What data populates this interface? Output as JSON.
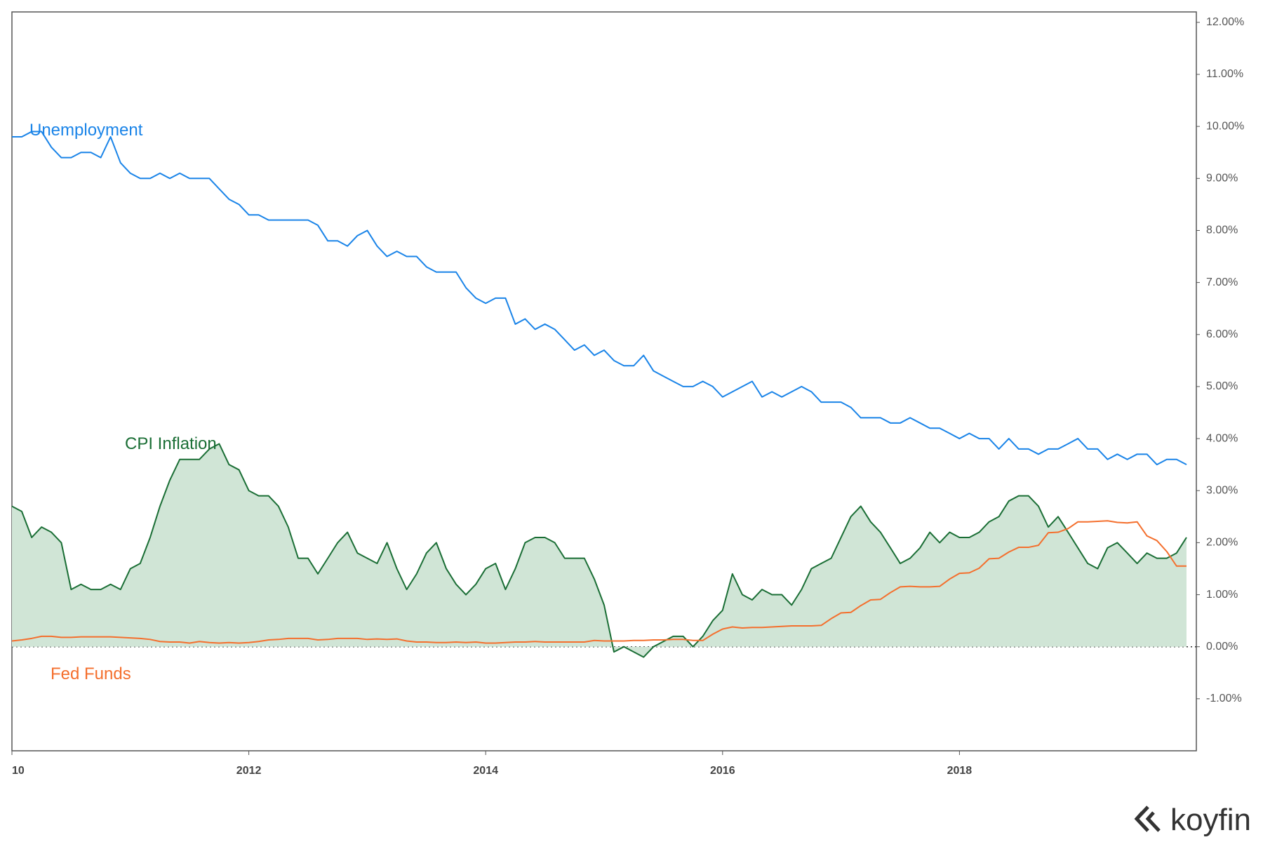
{
  "chart_data": {
    "type": "line",
    "xlim": [
      2010,
      2020
    ],
    "xticks": [
      {
        "value": 2010,
        "label": "10"
      },
      2012,
      2014,
      2016,
      2018
    ],
    "ylim": [
      -2,
      12.2
    ],
    "yticks": [
      {
        "value": -1,
        "label": "-1.00%"
      },
      {
        "value": 0,
        "label": "0.00%"
      },
      {
        "value": 1,
        "label": "1.00%"
      },
      {
        "value": 2,
        "label": "2.00%"
      },
      {
        "value": 3,
        "label": "3.00%"
      },
      {
        "value": 4,
        "label": "4.00%"
      },
      {
        "value": 5,
        "label": "5.00%"
      },
      {
        "value": 6,
        "label": "6.00%"
      },
      {
        "value": 7,
        "label": "7.00%"
      },
      {
        "value": 8,
        "label": "8.00%"
      },
      {
        "value": 9,
        "label": "9.00%"
      },
      {
        "value": 10,
        "label": "10.00%"
      },
      {
        "value": 11,
        "label": "11.00%"
      },
      {
        "value": 12,
        "label": "12.00%"
      }
    ],
    "x": [
      2010,
      2010.083,
      2010.167,
      2010.25,
      2010.333,
      2010.417,
      2010.5,
      2010.583,
      2010.667,
      2010.75,
      2010.833,
      2010.917,
      2011,
      2011.083,
      2011.167,
      2011.25,
      2011.333,
      2011.417,
      2011.5,
      2011.583,
      2011.667,
      2011.75,
      2011.833,
      2011.917,
      2012,
      2012.083,
      2012.167,
      2012.25,
      2012.333,
      2012.417,
      2012.5,
      2012.583,
      2012.667,
      2012.75,
      2012.833,
      2012.917,
      2013,
      2013.083,
      2013.167,
      2013.25,
      2013.333,
      2013.417,
      2013.5,
      2013.583,
      2013.667,
      2013.75,
      2013.833,
      2013.917,
      2014,
      2014.083,
      2014.167,
      2014.25,
      2014.333,
      2014.417,
      2014.5,
      2014.583,
      2014.667,
      2014.75,
      2014.833,
      2014.917,
      2015,
      2015.083,
      2015.167,
      2015.25,
      2015.333,
      2015.417,
      2015.5,
      2015.583,
      2015.667,
      2015.75,
      2015.833,
      2015.917,
      2016,
      2016.083,
      2016.167,
      2016.25,
      2016.333,
      2016.417,
      2016.5,
      2016.583,
      2016.667,
      2016.75,
      2016.833,
      2016.917,
      2017,
      2017.083,
      2017.167,
      2017.25,
      2017.333,
      2017.417,
      2017.5,
      2017.583,
      2017.667,
      2017.75,
      2017.833,
      2017.917,
      2018,
      2018.083,
      2018.167,
      2018.25,
      2018.333,
      2018.417,
      2018.5,
      2018.583,
      2018.667,
      2018.75,
      2018.833,
      2018.917,
      2019,
      2019.083,
      2019.167,
      2019.25,
      2019.333,
      2019.417,
      2019.5,
      2019.583,
      2019.667,
      2019.75,
      2019.833,
      2019.917
    ],
    "series": [
      {
        "name": "Unemployment",
        "color": "#1a84e8",
        "fill": false,
        "values": [
          9.8,
          9.8,
          9.9,
          9.9,
          9.6,
          9.4,
          9.4,
          9.5,
          9.5,
          9.4,
          9.8,
          9.3,
          9.1,
          9.0,
          9.0,
          9.1,
          9.0,
          9.1,
          9.0,
          9.0,
          9.0,
          8.8,
          8.6,
          8.5,
          8.3,
          8.3,
          8.2,
          8.2,
          8.2,
          8.2,
          8.2,
          8.1,
          7.8,
          7.8,
          7.7,
          7.9,
          8.0,
          7.7,
          7.5,
          7.6,
          7.5,
          7.5,
          7.3,
          7.2,
          7.2,
          7.2,
          6.9,
          6.7,
          6.6,
          6.7,
          6.7,
          6.2,
          6.3,
          6.1,
          6.2,
          6.1,
          5.9,
          5.7,
          5.8,
          5.6,
          5.7,
          5.5,
          5.4,
          5.4,
          5.6,
          5.3,
          5.2,
          5.1,
          5.0,
          5.0,
          5.1,
          5.0,
          4.8,
          4.9,
          5.0,
          5.1,
          4.8,
          4.9,
          4.8,
          4.9,
          5.0,
          4.9,
          4.7,
          4.7,
          4.7,
          4.6,
          4.4,
          4.4,
          4.4,
          4.3,
          4.3,
          4.4,
          4.3,
          4.2,
          4.2,
          4.1,
          4.0,
          4.1,
          4.0,
          4.0,
          3.8,
          4.0,
          3.8,
          3.8,
          3.7,
          3.8,
          3.8,
          3.9,
          4.0,
          3.8,
          3.8,
          3.6,
          3.7,
          3.6,
          3.7,
          3.7,
          3.5,
          3.6,
          3.6,
          3.5
        ]
      },
      {
        "name": "CPI Inflation",
        "color": "#1a6e35",
        "fill": "#d0e5d6",
        "values": [
          2.7,
          2.6,
          2.1,
          2.3,
          2.2,
          2.0,
          1.1,
          1.2,
          1.1,
          1.1,
          1.2,
          1.1,
          1.5,
          1.6,
          2.1,
          2.7,
          3.2,
          3.6,
          3.6,
          3.6,
          3.8,
          3.9,
          3.5,
          3.4,
          3.0,
          2.9,
          2.9,
          2.7,
          2.3,
          1.7,
          1.7,
          1.4,
          1.7,
          2.0,
          2.2,
          1.8,
          1.7,
          1.6,
          2.0,
          1.5,
          1.1,
          1.4,
          1.8,
          2.0,
          1.5,
          1.2,
          1.0,
          1.2,
          1.5,
          1.6,
          1.1,
          1.5,
          2.0,
          2.1,
          2.1,
          2.0,
          1.7,
          1.7,
          1.7,
          1.3,
          0.8,
          -0.1,
          0.0,
          -0.1,
          -0.2,
          0.0,
          0.1,
          0.2,
          0.2,
          0.0,
          0.2,
          0.5,
          0.7,
          1.4,
          1.0,
          0.9,
          1.1,
          1.0,
          1.0,
          0.8,
          1.1,
          1.5,
          1.6,
          1.7,
          2.1,
          2.5,
          2.7,
          2.4,
          2.2,
          1.9,
          1.6,
          1.7,
          1.9,
          2.2,
          2.0,
          2.2,
          2.1,
          2.1,
          2.2,
          2.4,
          2.5,
          2.8,
          2.9,
          2.9,
          2.7,
          2.3,
          2.5,
          2.2,
          1.9,
          1.6,
          1.5,
          1.9,
          2.0,
          1.8,
          1.6,
          1.8,
          1.7,
          1.7,
          1.8,
          2.1
        ]
      },
      {
        "name": "Fed Funds",
        "color": "#f46f2d",
        "fill": false,
        "values": [
          0.11,
          0.13,
          0.16,
          0.2,
          0.2,
          0.18,
          0.18,
          0.19,
          0.19,
          0.19,
          0.19,
          0.18,
          0.17,
          0.16,
          0.14,
          0.1,
          0.09,
          0.09,
          0.07,
          0.1,
          0.08,
          0.07,
          0.08,
          0.07,
          0.08,
          0.1,
          0.13,
          0.14,
          0.16,
          0.16,
          0.16,
          0.13,
          0.14,
          0.16,
          0.16,
          0.16,
          0.14,
          0.15,
          0.14,
          0.15,
          0.11,
          0.09,
          0.09,
          0.08,
          0.08,
          0.09,
          0.08,
          0.09,
          0.07,
          0.07,
          0.08,
          0.09,
          0.09,
          0.1,
          0.09,
          0.09,
          0.09,
          0.09,
          0.09,
          0.12,
          0.11,
          0.11,
          0.11,
          0.12,
          0.12,
          0.13,
          0.13,
          0.14,
          0.14,
          0.12,
          0.12,
          0.24,
          0.34,
          0.38,
          0.36,
          0.37,
          0.37,
          0.38,
          0.39,
          0.4,
          0.4,
          0.4,
          0.41,
          0.54,
          0.65,
          0.66,
          0.79,
          0.9,
          0.91,
          1.04,
          1.15,
          1.16,
          1.15,
          1.15,
          1.16,
          1.3,
          1.41,
          1.42,
          1.51,
          1.69,
          1.7,
          1.82,
          1.91,
          1.91,
          1.95,
          2.19,
          2.2,
          2.27,
          2.4,
          2.4,
          2.41,
          2.42,
          2.39,
          2.38,
          2.4,
          2.13,
          2.04,
          1.83,
          1.55,
          1.55
        ]
      }
    ]
  },
  "brand": "koyfin"
}
